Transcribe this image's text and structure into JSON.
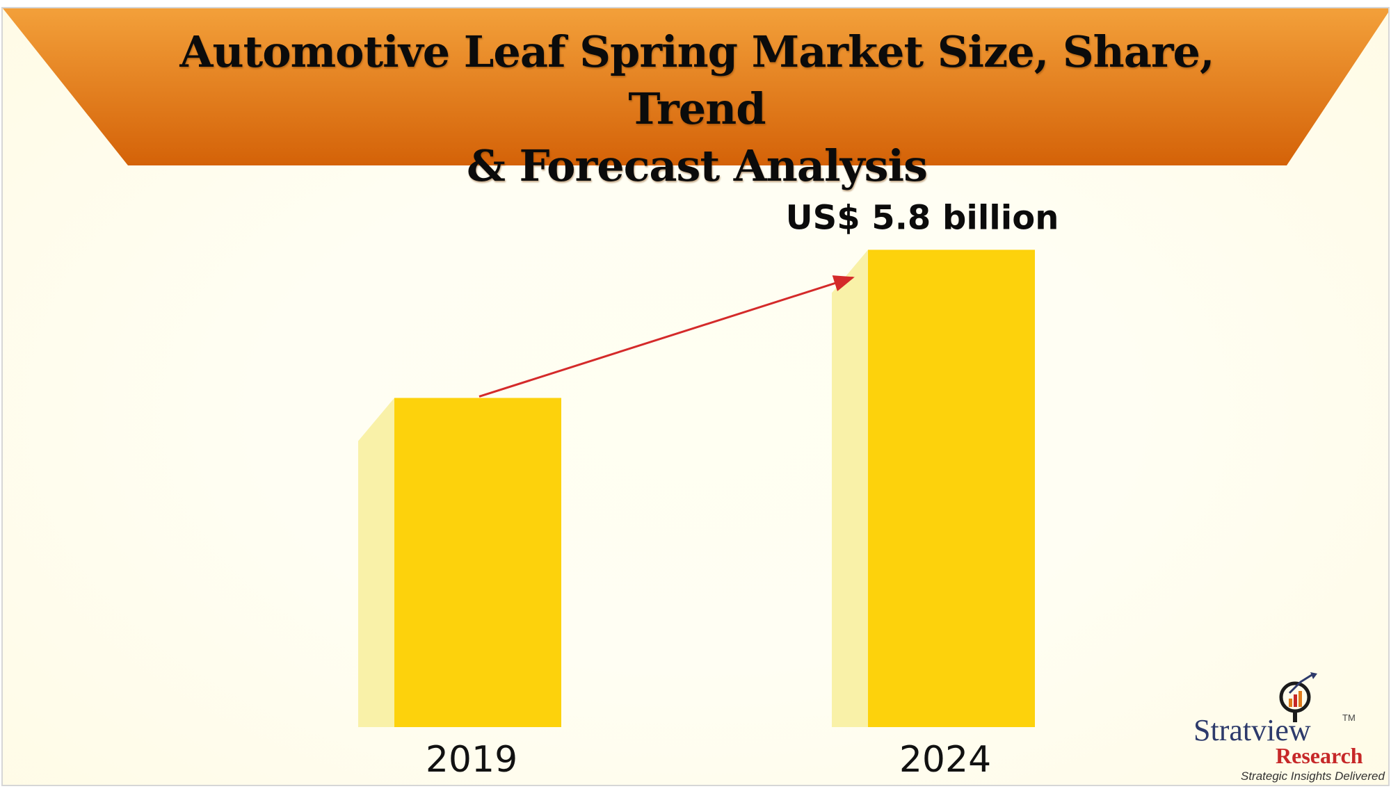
{
  "header": {
    "title_line1": "Automotive Leaf Spring Market Size, Share, Trend",
    "title_line2": "& Forecast Analysis"
  },
  "chart_data": {
    "type": "bar",
    "title": "Automotive Leaf Spring Market Size, Share, Trend & Forecast Analysis",
    "categories": [
      "2019",
      "2024"
    ],
    "values": [
      4.0,
      5.8
    ],
    "unit": "US$ billion",
    "data_labels": [
      "",
      "US$ 5.8 billion"
    ],
    "ylim": [
      0,
      6.2
    ],
    "grid": false,
    "legend": "none",
    "annotation": "arrow-growth-2019-to-2024",
    "colors": {
      "bar_front": "#fdd20c",
      "bar_side": "#f9f1a8",
      "arrow": "#d42a2a",
      "banner_top": "#f3a03a",
      "banner_bottom": "#d46208"
    }
  },
  "logo": {
    "name": "Stratview",
    "tm": "TM",
    "sub": "Research",
    "tagline": "Strategic Insights Delivered",
    "icon": "magnifier-bar-chart-icon"
  }
}
